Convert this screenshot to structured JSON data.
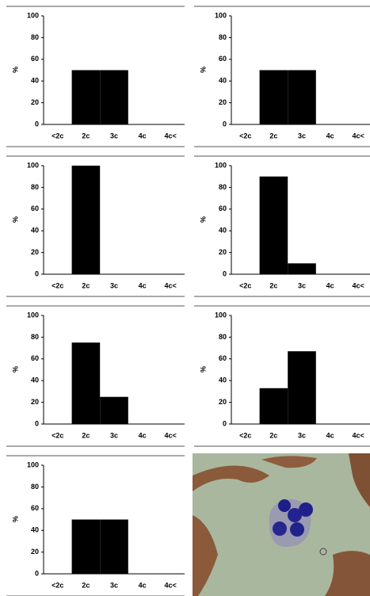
{
  "chart_data": [
    {
      "type": "bar",
      "ylabel": "%",
      "categories": [
        "<2c",
        "2c",
        "3c",
        "4c",
        "4c<"
      ],
      "values": [
        0,
        50,
        50,
        0,
        0
      ],
      "color": "#000000",
      "ylim": [
        0,
        100
      ],
      "yticks": [
        0,
        20,
        40,
        60,
        80,
        100
      ]
    },
    {
      "type": "bar",
      "ylabel": "%",
      "categories": [
        "<2c",
        "2c",
        "3c",
        "4c",
        "4c<"
      ],
      "values": [
        0,
        50,
        50,
        0,
        0
      ],
      "color": "#000000",
      "ylim": [
        0,
        100
      ],
      "yticks": [
        0,
        20,
        40,
        60,
        80,
        100
      ]
    },
    {
      "type": "bar",
      "ylabel": "%",
      "categories": [
        "<2c",
        "2c",
        "3c",
        "4c",
        "4c<"
      ],
      "values": [
        0,
        100,
        0,
        0,
        0
      ],
      "color": "#000000",
      "ylim": [
        0,
        100
      ],
      "yticks": [
        0,
        20,
        40,
        60,
        80,
        100
      ]
    },
    {
      "type": "bar",
      "ylabel": "%",
      "categories": [
        "<2c",
        "2c",
        "3c",
        "4c",
        "4c<"
      ],
      "values": [
        0,
        90,
        10,
        0,
        0
      ],
      "color": "#000000",
      "ylim": [
        0,
        100
      ],
      "yticks": [
        0,
        20,
        40,
        60,
        80,
        100
      ]
    },
    {
      "type": "bar",
      "ylabel": "%",
      "categories": [
        "<2c",
        "2c",
        "3c",
        "4c",
        "4c<"
      ],
      "values": [
        0,
        75,
        25,
        0,
        0
      ],
      "color": "#000000",
      "ylim": [
        0,
        100
      ],
      "yticks": [
        0,
        20,
        40,
        60,
        80,
        100
      ]
    },
    {
      "type": "bar",
      "ylabel": "%",
      "categories": [
        "<2c",
        "2c",
        "3c",
        "4c",
        "4c<"
      ],
      "values": [
        0,
        33,
        67,
        0,
        0
      ],
      "color": "#000000",
      "ylim": [
        0,
        100
      ],
      "yticks": [
        0,
        20,
        40,
        60,
        80,
        100
      ]
    },
    {
      "type": "bar",
      "ylabel": "%",
      "categories": [
        "<2c",
        "2c",
        "3c",
        "4c",
        "4c<"
      ],
      "values": [
        0,
        50,
        50,
        0,
        0
      ],
      "color": "#000000",
      "ylim": [
        0,
        100
      ],
      "yticks": [
        0,
        20,
        40,
        60,
        80,
        100
      ]
    }
  ]
}
